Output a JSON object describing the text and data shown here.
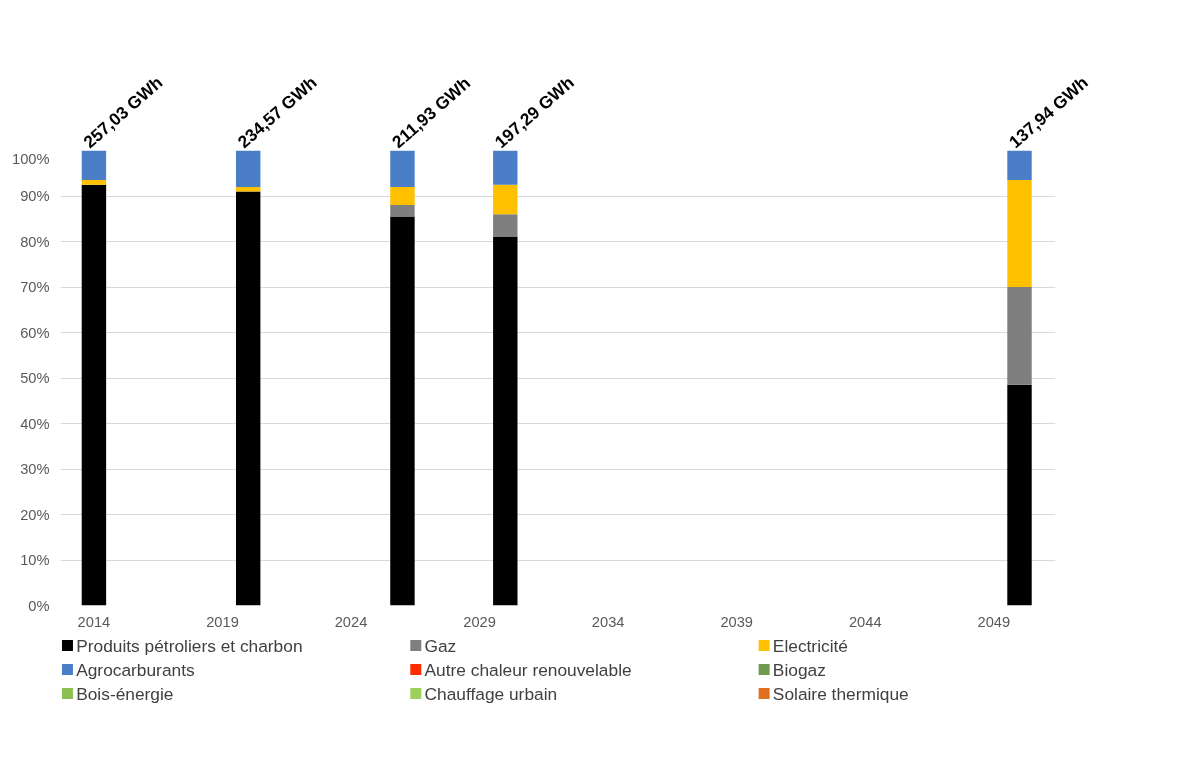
{
  "chart_data": {
    "type": "bar",
    "stacked": true,
    "x": [
      2014,
      2020,
      2026,
      2030,
      2050
    ],
    "series": [
      {
        "name": "Produits pétroliers et charbon",
        "color": "#000000",
        "values": [
          92.5,
          91,
          85.5,
          81,
          48.5
        ]
      },
      {
        "name": "Gaz",
        "color": "#7f7f7f",
        "values": [
          0,
          0,
          2.5,
          5,
          21.5
        ]
      },
      {
        "name": "Electricité",
        "color": "#ffc000",
        "values": [
          1,
          1,
          4,
          6.5,
          23.5
        ]
      },
      {
        "name": "Agrocarburants",
        "color": "#4a7fc8",
        "values": [
          6.5,
          8,
          8,
          7.5,
          6.5
        ]
      },
      {
        "name": "Autre chaleur renouvelable",
        "color": "#ff2d00",
        "values": [
          0,
          0,
          0,
          0,
          0
        ]
      },
      {
        "name": "Biogaz",
        "color": "#6f9a4f",
        "values": [
          0,
          0,
          0,
          0,
          0
        ]
      },
      {
        "name": "Bois-énergie",
        "color": "#8cc152",
        "values": [
          0,
          0,
          0,
          0,
          0
        ]
      },
      {
        "name": "Chauffage urbain",
        "color": "#9bd15a",
        "values": [
          0,
          0,
          0,
          0,
          0
        ]
      },
      {
        "name": "Solaire thermique",
        "color": "#e07020",
        "values": [
          0,
          0,
          0,
          0,
          0
        ]
      }
    ],
    "annotations": [
      {
        "text": "257,03 GWh",
        "x": 2014,
        "y": 100
      },
      {
        "text": "234,57 GWh",
        "x": 2020,
        "y": 100
      },
      {
        "text": "211,93 GWh",
        "x": 2026,
        "y": 100
      },
      {
        "text": "197,29 GWh",
        "x": 2030,
        "y": 100
      },
      {
        "text": "137,94 GWh",
        "x": 2050,
        "y": 100
      }
    ],
    "xlim": [
      2012.7,
      2051.4
    ],
    "xticks": [
      2014,
      2019,
      2024,
      2029,
      2034,
      2039,
      2044,
      2049
    ],
    "ylim": [
      0,
      100
    ],
    "yticks": [
      {
        "value": 0,
        "label": "0%"
      },
      {
        "value": 10,
        "label": "10%"
      },
      {
        "value": 20,
        "label": "20%"
      },
      {
        "value": 30,
        "label": "30%"
      },
      {
        "value": 40,
        "label": "40%"
      },
      {
        "value": 50,
        "label": "50%"
      },
      {
        "value": 60,
        "label": "60%"
      },
      {
        "value": 70,
        "label": "70%"
      },
      {
        "value": 80,
        "label": "80%"
      },
      {
        "value": 90,
        "label": "90%"
      },
      {
        "value": 100,
        "label": "100%"
      }
    ],
    "grid": "y",
    "legend": "bottom"
  }
}
